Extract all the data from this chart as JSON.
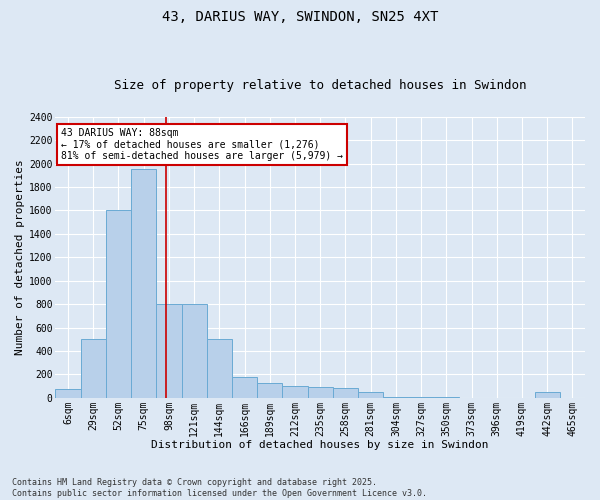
{
  "title": "43, DARIUS WAY, SWINDON, SN25 4XT",
  "subtitle": "Size of property relative to detached houses in Swindon",
  "xlabel": "Distribution of detached houses by size in Swindon",
  "ylabel": "Number of detached properties",
  "categories": [
    "6sqm",
    "29sqm",
    "52sqm",
    "75sqm",
    "98sqm",
    "121sqm",
    "144sqm",
    "166sqm",
    "189sqm",
    "212sqm",
    "235sqm",
    "258sqm",
    "281sqm",
    "304sqm",
    "327sqm",
    "350sqm",
    "373sqm",
    "396sqm",
    "419sqm",
    "442sqm",
    "465sqm"
  ],
  "values": [
    75,
    500,
    1600,
    1950,
    800,
    800,
    500,
    175,
    130,
    100,
    90,
    85,
    50,
    10,
    5,
    3,
    2,
    2,
    2,
    50,
    2
  ],
  "bar_color": "#b8d0ea",
  "bar_edgecolor": "#6aaad4",
  "vline_color": "#cc0000",
  "vline_pos": 3.87,
  "annotation_text": "43 DARIUS WAY: 88sqm\n← 17% of detached houses are smaller (1,276)\n81% of semi-detached houses are larger (5,979) →",
  "annotation_box_facecolor": "white",
  "annotation_box_edgecolor": "#cc0000",
  "ylim": [
    0,
    2400
  ],
  "yticks": [
    0,
    200,
    400,
    600,
    800,
    1000,
    1200,
    1400,
    1600,
    1800,
    2000,
    2200,
    2400
  ],
  "footer1": "Contains HM Land Registry data © Crown copyright and database right 2025.",
  "footer2": "Contains public sector information licensed under the Open Government Licence v3.0.",
  "bg_color": "#dde8f4",
  "plot_bg_color": "#dde8f4",
  "title_fontsize": 10,
  "subtitle_fontsize": 9,
  "ylabel_fontsize": 8,
  "xlabel_fontsize": 8,
  "tick_fontsize": 7,
  "annotation_fontsize": 7,
  "footer_fontsize": 6
}
